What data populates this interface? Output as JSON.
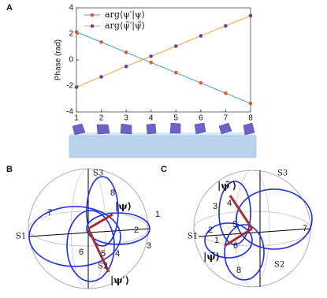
{
  "chart_data": {
    "type": "line",
    "panel_label": "A",
    "ylabel": "Phase (rad)",
    "x": [
      1,
      2,
      3,
      4,
      5,
      6,
      7,
      8
    ],
    "xlim": [
      1,
      8
    ],
    "xticks": [
      1,
      2,
      3,
      4,
      5,
      6,
      7,
      8
    ],
    "ylim": [
      -4,
      4
    ],
    "yticks": [
      -4,
      -2,
      0,
      2,
      4
    ],
    "series": [
      {
        "name": "arg⟨ψ′|ψ⟩",
        "color": "#3a9fd6",
        "marker_color": "#e8572a",
        "values": [
          2.15,
          1.37,
          0.58,
          -0.2,
          -0.98,
          -1.77,
          -2.56,
          -3.35
        ]
      },
      {
        "name": "arg⟨ψ̃′|ψ̃⟩",
        "color": "#f0a636",
        "marker_color": "#6b3fa0",
        "values": [
          -2.1,
          -1.3,
          -0.5,
          0.28,
          1.06,
          1.85,
          2.62,
          3.4
        ]
      }
    ],
    "legend": "upper left"
  },
  "panel_b": {
    "label": "B",
    "s3": "S3",
    "s1": "S1",
    "s2": "S2",
    "psi": "|ψ⟩",
    "psi_prime": "|ψ′⟩",
    "numbers": [
      "1",
      "2",
      "3",
      "4",
      "5",
      "6",
      "7",
      "8"
    ]
  },
  "panel_c": {
    "label": "C",
    "s3": "S3",
    "s1": "S1",
    "s2": "S2",
    "psi": "|ψ̃⟩",
    "psi_prime": "|ψ̃′⟩",
    "numbers": [
      "1",
      "2",
      "3",
      "4",
      "5",
      "6",
      "7",
      "8"
    ]
  }
}
